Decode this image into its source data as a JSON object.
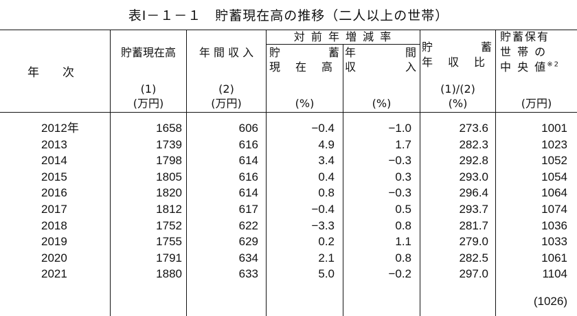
{
  "title": "表Ⅰ－１－１　貯蓄現在高の推移（二人以上の世帯）",
  "headers": {
    "year": "年　　次",
    "savings": "貯蓄現在高",
    "income": "年 間 収 入",
    "yoy_group": "対 前 年 増 減 率",
    "yoy_savings_a": "貯",
    "yoy_savings_b": "蓄",
    "yoy_savings_c": "現　在　高",
    "yoy_income_a": "年",
    "yoy_income_b": "間",
    "yoy_income_c": "収",
    "yoy_income_d": "入",
    "ratio_a": "貯",
    "ratio_b": "蓄",
    "ratio_c": "年　収　比",
    "median_a": "貯蓄保有",
    "median_b": "世 帯 の",
    "median_c": "中 央 値",
    "median_note": "※2"
  },
  "indices": {
    "savings": "(1)",
    "income": "(2)",
    "ratio": "(1)/(2)"
  },
  "units": {
    "savings": "(万円)",
    "income": "(万円)",
    "yoy_savings": "(%)",
    "yoy_income": "(%)",
    "ratio": "(%)",
    "median": "(万円)"
  },
  "rows": [
    {
      "year": "2012年",
      "savings": "1658",
      "income": "606",
      "yoy_savings": "−0.4",
      "yoy_income": "−1.0",
      "ratio": "273.6",
      "median": "1001"
    },
    {
      "year": "2013",
      "savings": "1739",
      "income": "616",
      "yoy_savings": "4.9",
      "yoy_income": "1.7",
      "ratio": "282.3",
      "median": "1023"
    },
    {
      "year": "2014",
      "savings": "1798",
      "income": "614",
      "yoy_savings": "3.4",
      "yoy_income": "−0.3",
      "ratio": "292.8",
      "median": "1052"
    },
    {
      "year": "2015",
      "savings": "1805",
      "income": "616",
      "yoy_savings": "0.4",
      "yoy_income": "0.3",
      "ratio": "293.0",
      "median": "1054"
    },
    {
      "year": "2016",
      "savings": "1820",
      "income": "614",
      "yoy_savings": "0.8",
      "yoy_income": "−0.3",
      "ratio": "296.4",
      "median": "1064"
    },
    {
      "year": "2017",
      "savings": "1812",
      "income": "617",
      "yoy_savings": "−0.4",
      "yoy_income": "0.5",
      "ratio": "293.7",
      "median": "1074"
    },
    {
      "year": "2018",
      "savings": "1752",
      "income": "622",
      "yoy_savings": "−3.3",
      "yoy_income": "0.8",
      "ratio": "281.7",
      "median": "1036"
    },
    {
      "year": "2019",
      "savings": "1755",
      "income": "629",
      "yoy_savings": "0.2",
      "yoy_income": "1.1",
      "ratio": "279.0",
      "median": "1033"
    },
    {
      "year": "2020",
      "savings": "1791",
      "income": "634",
      "yoy_savings": "2.1",
      "yoy_income": "0.8",
      "ratio": "282.5",
      "median": "1061"
    },
    {
      "year": "2021",
      "savings": "1880",
      "income": "633",
      "yoy_savings": "5.0",
      "yoy_income": "−0.2",
      "ratio": "297.0",
      "median": "1104"
    }
  ],
  "median_extra": "(1026)"
}
